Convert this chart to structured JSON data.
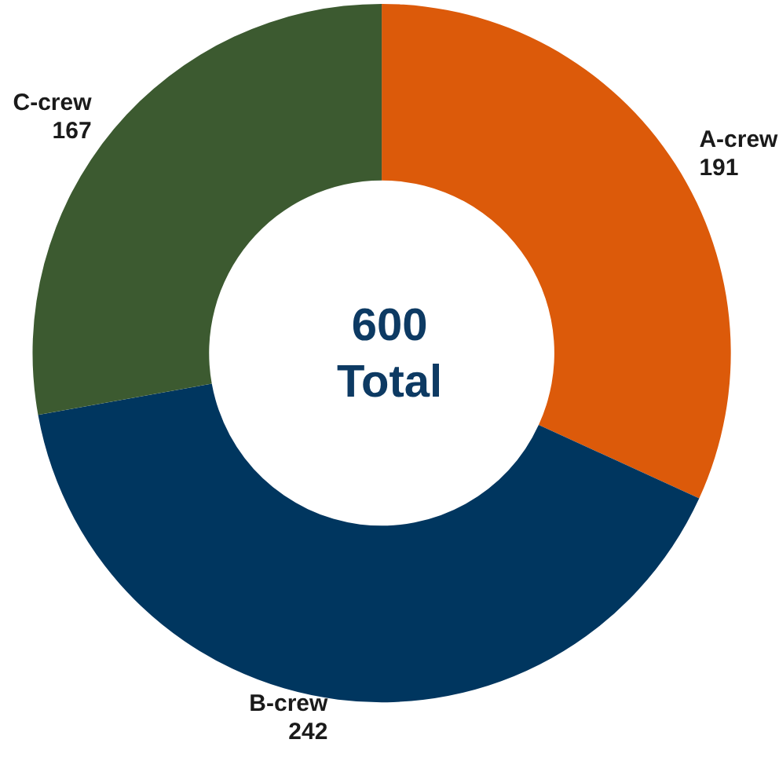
{
  "chart_data": {
    "type": "donut",
    "categories": [
      "A-crew",
      "B-crew",
      "C-crew"
    ],
    "values": [
      191,
      242,
      167
    ],
    "colors": [
      "#dc5a0a",
      "#00365f",
      "#3c5a30"
    ],
    "data_labels": true,
    "legend": false,
    "annotations": [
      "600",
      "Total"
    ]
  }
}
